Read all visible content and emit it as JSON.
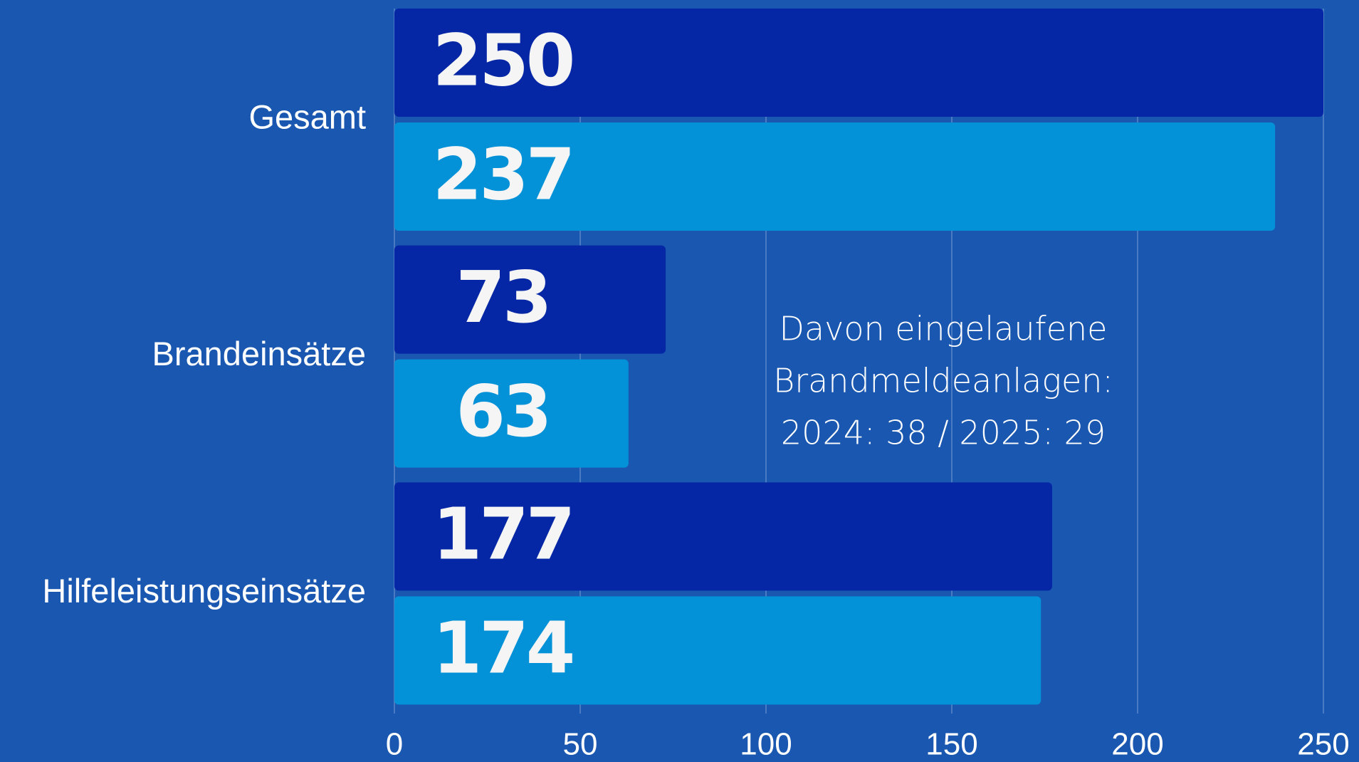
{
  "chart_data": {
    "type": "bar",
    "orientation": "horizontal",
    "categories": [
      "Gesamt",
      "Brandeinsätze",
      "Hilfeleistungseinsätze"
    ],
    "series": [
      {
        "color": "#0527a5",
        "values": [
          250,
          73,
          177
        ]
      },
      {
        "color": "#0391d8",
        "values": [
          237,
          63,
          174
        ]
      }
    ],
    "xlim": [
      0,
      250
    ],
    "xticks": [
      0,
      50,
      100,
      150,
      200,
      250
    ],
    "grid": true,
    "annotation": [
      "Davon eingelaufene",
      "Brandmeldeanlagen:",
      "2024: 38 / 2025: 29"
    ]
  }
}
